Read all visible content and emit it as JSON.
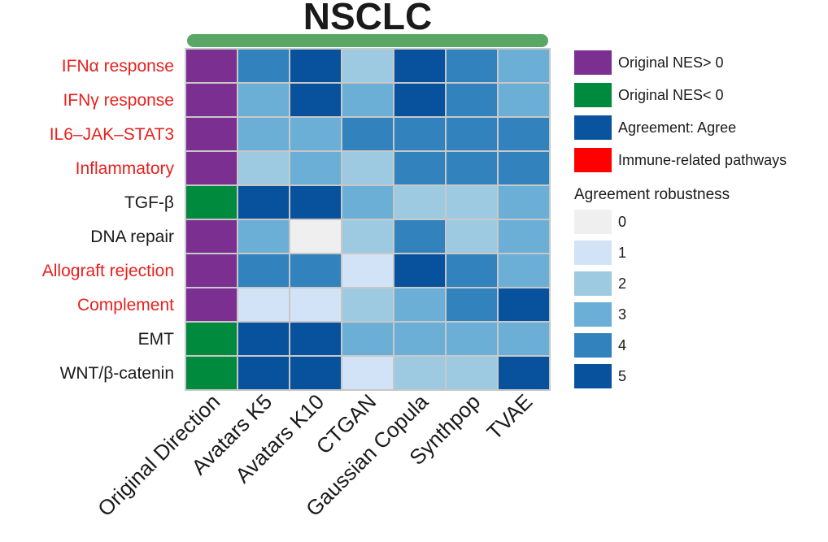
{
  "chart_data": {
    "type": "heatmap",
    "title": "NSCLC",
    "columns": [
      "Original Direction",
      "Avatars K5",
      "Avatars K10",
      "CTGAN",
      "Gaussian Copula",
      "Synthpop",
      "TVAE"
    ],
    "rows": [
      {
        "label": "IFNα response",
        "immune_related": true,
        "direction": "NES>0",
        "robustness": [
          4,
          5,
          2,
          5,
          4,
          3
        ]
      },
      {
        "label": "IFNγ response",
        "immune_related": true,
        "direction": "NES>0",
        "robustness": [
          3,
          5,
          3,
          5,
          4,
          3
        ]
      },
      {
        "label": "IL6–JAK–STAT3",
        "immune_related": true,
        "direction": "NES>0",
        "robustness": [
          3,
          3,
          4,
          4,
          4,
          4
        ]
      },
      {
        "label": "Inflammatory",
        "immune_related": true,
        "direction": "NES>0",
        "robustness": [
          2,
          3,
          2,
          4,
          4,
          4
        ]
      },
      {
        "label": "TGF-β",
        "immune_related": false,
        "direction": "NES<0",
        "robustness": [
          5,
          5,
          3,
          2,
          2,
          3
        ]
      },
      {
        "label": "DNA repair",
        "immune_related": false,
        "direction": "NES>0",
        "robustness": [
          3,
          0,
          2,
          4,
          2,
          3
        ]
      },
      {
        "label": "Allograft rejection",
        "immune_related": true,
        "direction": "NES>0",
        "robustness": [
          4,
          4,
          1,
          5,
          4,
          3
        ]
      },
      {
        "label": "Complement",
        "immune_related": true,
        "direction": "NES>0",
        "robustness": [
          1,
          1,
          2,
          3,
          4,
          5
        ]
      },
      {
        "label": "EMT",
        "immune_related": false,
        "direction": "NES<0",
        "robustness": [
          5,
          5,
          3,
          3,
          3,
          3
        ]
      },
      {
        "label": "WNT/β-catenin",
        "immune_related": false,
        "direction": "NES<0",
        "robustness": [
          5,
          5,
          1,
          2,
          2,
          5
        ]
      }
    ],
    "legend": {
      "categories": [
        {
          "label": "Original NES> 0",
          "color": "#7b2f91"
        },
        {
          "label": "Original NES< 0",
          "color": "#008a3e"
        },
        {
          "label": "Agreement: Agree",
          "color": "#0a539e"
        },
        {
          "label": "Immune-related pathways",
          "color": "#ff0000"
        }
      ],
      "scale_title": "Agreement robustness",
      "scale": [
        {
          "label": "0",
          "color": "#efefef"
        },
        {
          "label": "1",
          "color": "#d2e2f7"
        },
        {
          "label": "2",
          "color": "#9ecae1"
        },
        {
          "label": "3",
          "color": "#6baed6"
        },
        {
          "label": "4",
          "color": "#3182bd"
        },
        {
          "label": "5",
          "color": "#08519c"
        }
      ],
      "placement": "right"
    },
    "colors": {
      "nes_positive": "#7b2f91",
      "nes_negative": "#008a3e",
      "top_bar": "#5aa664",
      "immune_label": "#e8201e",
      "normal_label": "#1a1a1a",
      "cell_border": "#c8c8c8"
    }
  }
}
